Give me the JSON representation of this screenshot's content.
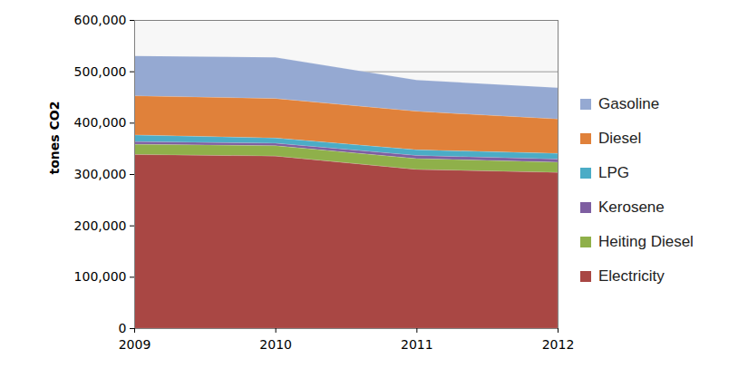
{
  "chart_data": {
    "type": "area",
    "stacked": true,
    "y_label": "tones CO2",
    "x": [
      2009,
      2010,
      2011,
      2012
    ],
    "xlim": [
      2009,
      2012
    ],
    "xticks": [
      2009,
      2010,
      2011,
      2012
    ],
    "ylim": [
      0,
      600000
    ],
    "yticks": [
      0,
      {
        "value": 100000,
        "label": "100,000"
      },
      {
        "value": 200000,
        "label": "200,000"
      },
      {
        "value": 300000,
        "label": "300,000"
      },
      {
        "value": 400000,
        "label": "400,000"
      },
      {
        "value": 500000,
        "label": "500,000"
      },
      {
        "value": 600000,
        "label": "600,000"
      }
    ],
    "grid": true,
    "legend": "right",
    "series": [
      {
        "name": "Gasoline",
        "color": "#95a9d2",
        "values": [
          78000,
          80000,
          61000,
          61000
        ]
      },
      {
        "name": "Diesel",
        "color": "#e0813a",
        "values": [
          76000,
          77000,
          75000,
          67000
        ]
      },
      {
        "name": "LPG",
        "color": "#4bacc6",
        "values": [
          13000,
          10000,
          11000,
          11000
        ]
      },
      {
        "name": "Kerosene",
        "color": "#7e5ea1",
        "values": [
          5000,
          5000,
          6000,
          6000
        ]
      },
      {
        "name": "Heiting Diesel",
        "color": "#8fb04a",
        "values": [
          20000,
          20000,
          21000,
          20000
        ]
      },
      {
        "name": "Electricity",
        "color": "#a94744",
        "values": [
          338000,
          335000,
          309000,
          303000
        ]
      }
    ]
  }
}
